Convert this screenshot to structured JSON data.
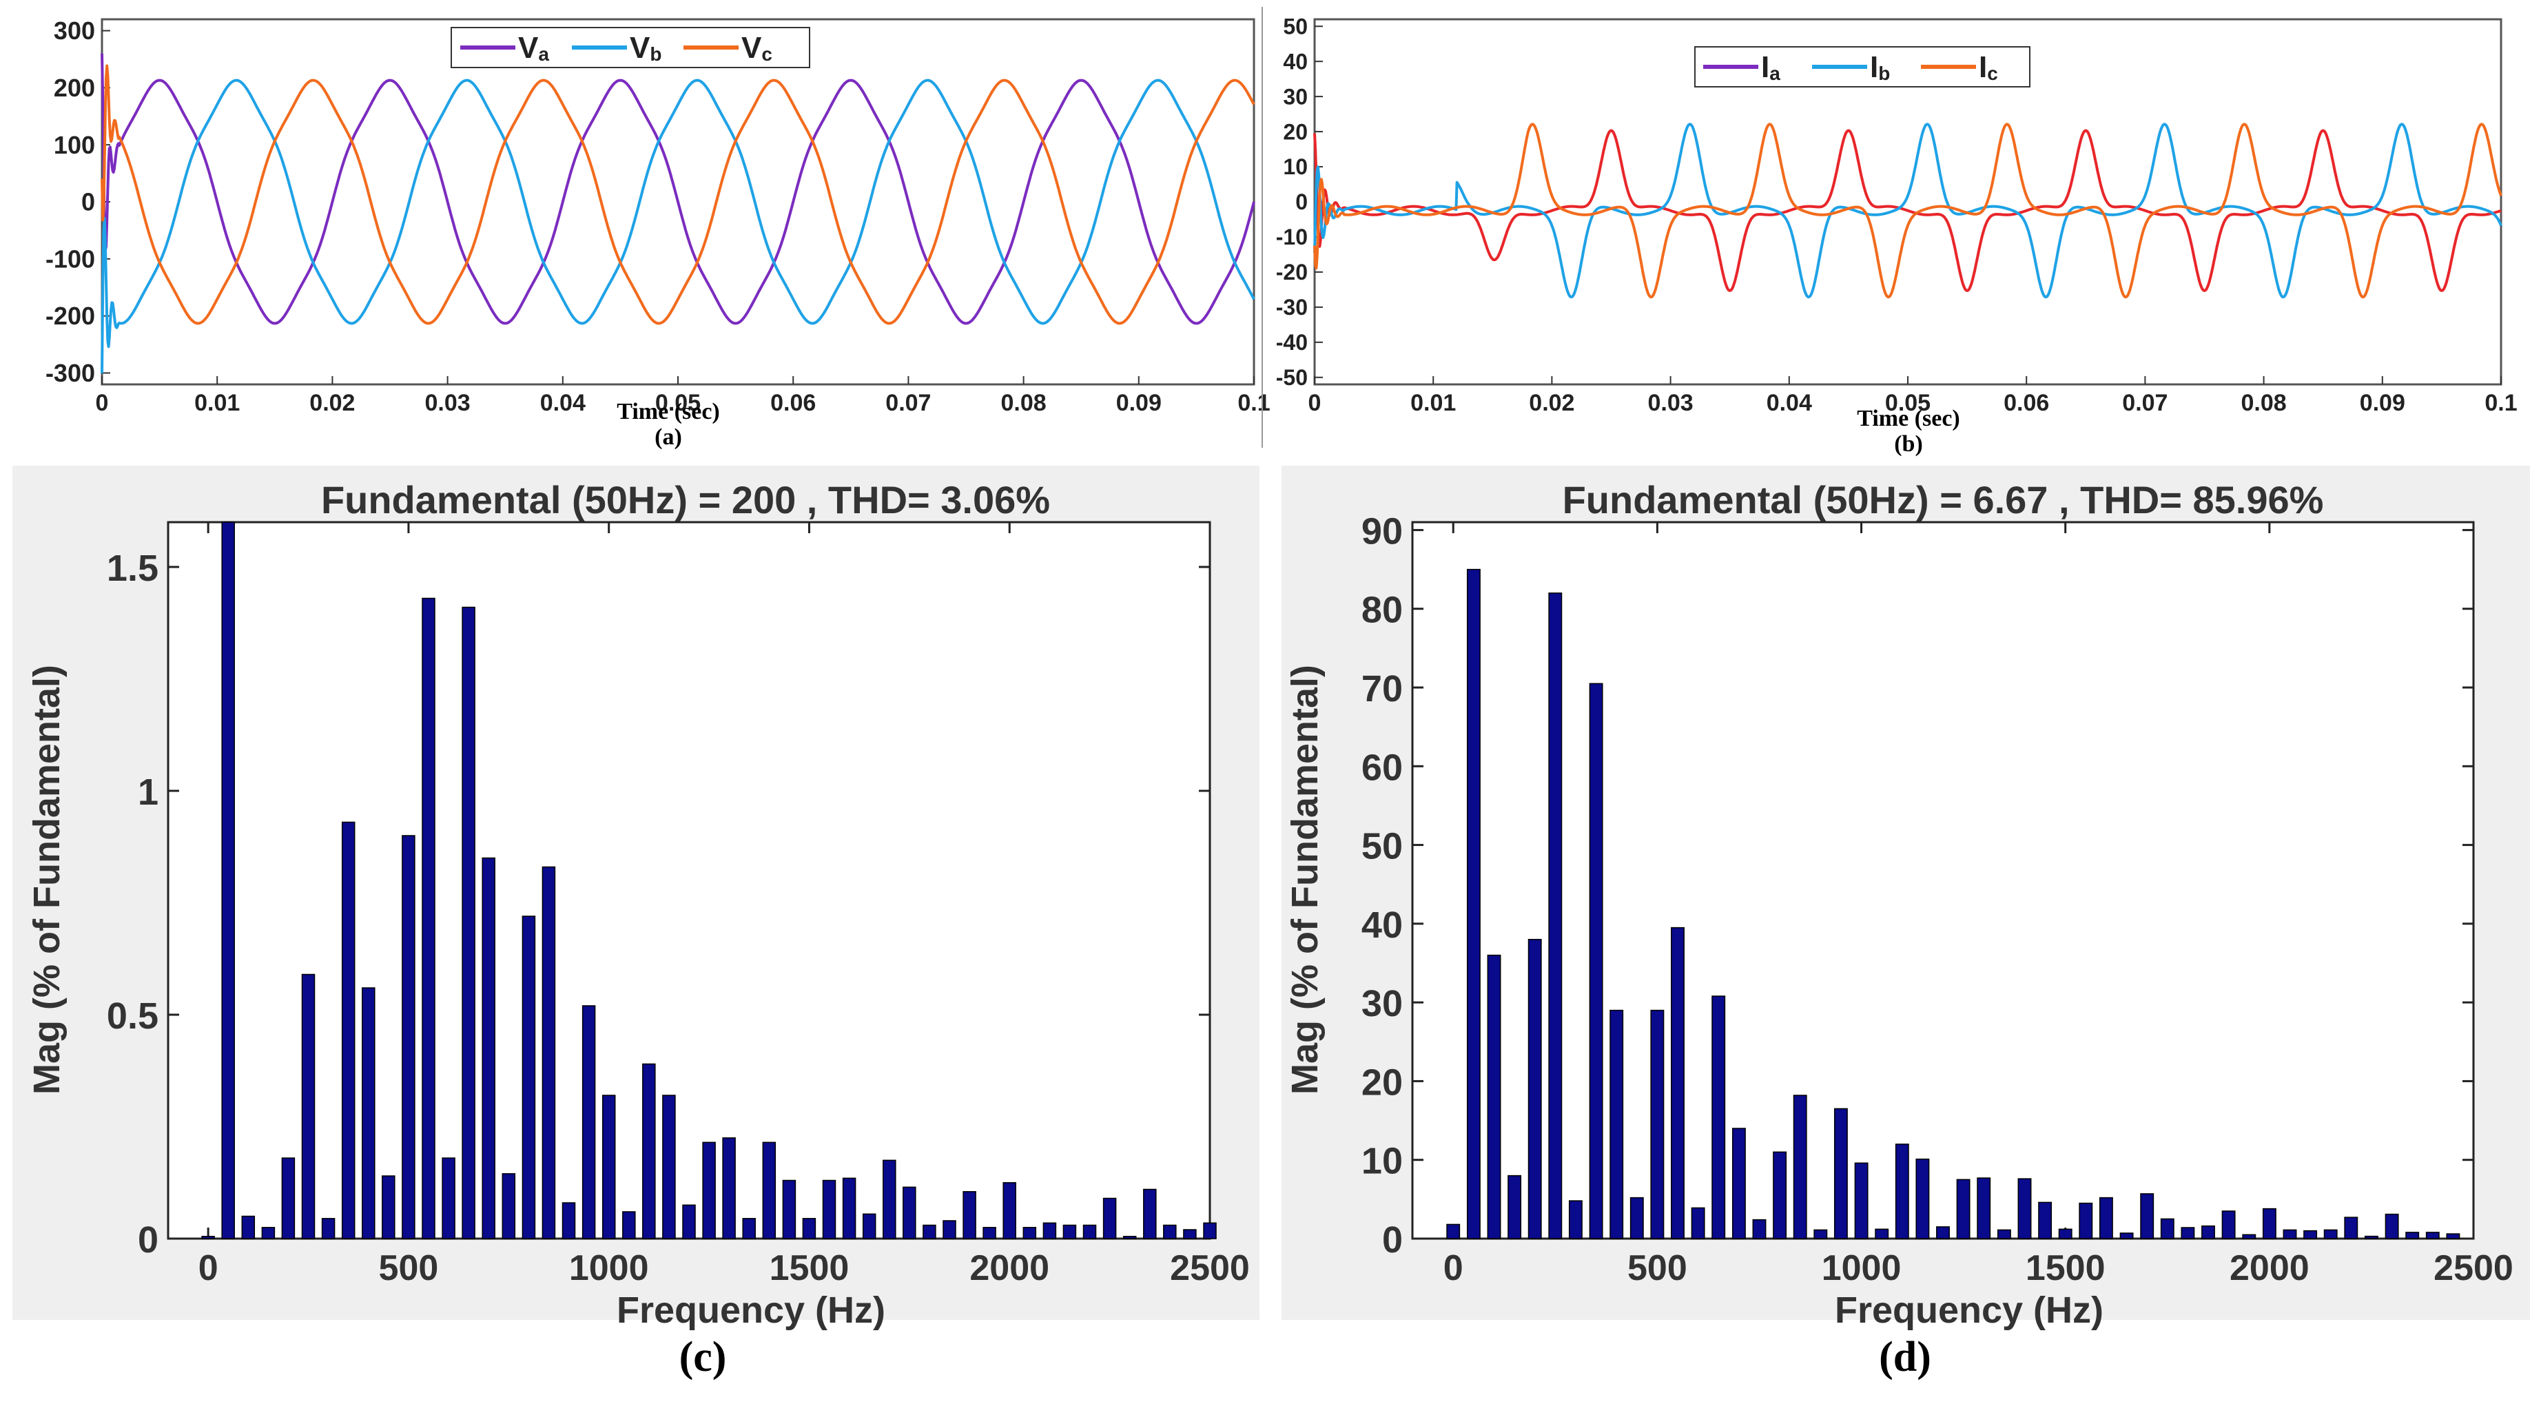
{
  "colors": {
    "phase_a": "#7B2CBF",
    "phase_b": "#1FA2E6",
    "phase_c": "#F26B1D",
    "current_a_trace": "#E8262A",
    "fft_bar": "#0A0A8C",
    "fft_panel_bg": "#EFEFEF"
  },
  "chart_data": [
    {
      "id": "a",
      "type": "line",
      "panel_label": "(a)",
      "xlabel": "Time (sec)",
      "ylabel": "",
      "xlim": [
        0,
        0.1
      ],
      "ylim": [
        -320,
        320
      ],
      "xticks": [
        "0",
        "0.01",
        "0.02",
        "0.03",
        "0.04",
        "0.05",
        "0.06",
        "0.07",
        "0.08",
        "0.09",
        "0.1"
      ],
      "yticks": [
        "300",
        "200",
        "100",
        "0",
        "-100",
        "-200",
        "-300"
      ],
      "legend_position": "top-center",
      "series": [
        {
          "name": "Va",
          "legend_main": "V",
          "legend_sub": "a",
          "amplitude": 205,
          "phase_deg": 0,
          "frequency_hz": 50
        },
        {
          "name": "Vb",
          "legend_main": "V",
          "legend_sub": "b",
          "amplitude": 205,
          "phase_deg": -120,
          "frequency_hz": 50
        },
        {
          "name": "Vc",
          "legend_main": "V",
          "legend_sub": "c",
          "amplitude": 205,
          "phase_deg": 120,
          "frequency_hz": 50
        }
      ]
    },
    {
      "id": "b",
      "type": "line",
      "panel_label": "(b)",
      "xlabel": "Time (sec)",
      "ylabel": "",
      "xlim": [
        0,
        0.1
      ],
      "ylim": [
        -52,
        52
      ],
      "xticks": [
        "0",
        "0.01",
        "0.02",
        "0.03",
        "0.04",
        "0.05",
        "0.06",
        "0.07",
        "0.08",
        "0.09",
        "0.1"
      ],
      "yticks": [
        "50",
        "40",
        "30",
        "20",
        "10",
        "0",
        "-10",
        "-20",
        "-30",
        "-40",
        "-50"
      ],
      "legend_position": "top-center",
      "series": [
        {
          "name": "Ia",
          "legend_main": "I",
          "legend_sub": "a",
          "pulse_peak": 24,
          "phase_deg": 0,
          "frequency_hz": 50
        },
        {
          "name": "Ib",
          "legend_main": "I",
          "legend_sub": "b",
          "pulse_peak": 24,
          "phase_deg": -120,
          "frequency_hz": 50
        },
        {
          "name": "Ic",
          "legend_main": "I",
          "legend_sub": "c",
          "pulse_peak": 24,
          "phase_deg": 120,
          "frequency_hz": 50
        }
      ]
    },
    {
      "id": "c",
      "type": "bar",
      "panel_label": "(c)",
      "title": "Fundamental (50Hz) = 200 , THD= 3.06%",
      "xlabel": "Frequency (Hz)",
      "ylabel": "Mag (% of Fundamental)",
      "xlim": [
        -100,
        2500
      ],
      "ylim": [
        0,
        1.6
      ],
      "xticks": [
        0,
        500,
        1000,
        1500,
        2000,
        2500
      ],
      "yticks": [
        0,
        0.5,
        1,
        1.5
      ],
      "ytick_labels": [
        "0",
        "0.5",
        "1",
        "1.5"
      ],
      "bar_frequencies_hz": [
        0,
        50,
        100,
        150,
        200,
        250,
        300,
        350,
        400,
        450,
        500,
        550,
        600,
        650,
        700,
        750,
        800,
        850,
        900,
        950,
        1000,
        1050,
        1100,
        1150,
        1200,
        1250,
        1300,
        1350,
        1400,
        1450,
        1500,
        1550,
        1600,
        1650,
        1700,
        1750,
        1800,
        1850,
        1900,
        1950,
        2000,
        2050,
        2100,
        2150,
        2200,
        2250,
        2300,
        2350,
        2400,
        2450,
        2500
      ],
      "values": [
        0.005,
        1.6,
        0.05,
        0.025,
        0.18,
        0.59,
        0.045,
        0.93,
        0.56,
        0.14,
        0.9,
        1.43,
        0.18,
        1.41,
        0.85,
        0.145,
        0.72,
        0.83,
        0.08,
        0.52,
        0.32,
        0.06,
        0.39,
        0.32,
        0.075,
        0.215,
        0.225,
        0.045,
        0.215,
        0.13,
        0.045,
        0.13,
        0.135,
        0.055,
        0.175,
        0.115,
        0.03,
        0.04,
        0.105,
        0.025,
        0.125,
        0.025,
        0.035,
        0.03,
        0.03,
        0.09,
        0.005,
        0.11,
        0.03,
        0.02,
        0.035
      ]
    },
    {
      "id": "d",
      "type": "bar",
      "panel_label": "(d)",
      "title": "Fundamental (50Hz) = 6.67 , THD= 85.96%",
      "xlabel": "Frequency (Hz)",
      "ylabel": "Mag (% of Fundamental)",
      "xlim": [
        -100,
        2500
      ],
      "ylim": [
        0,
        91
      ],
      "xticks": [
        0,
        500,
        1000,
        1500,
        2000,
        2500
      ],
      "yticks": [
        0,
        10,
        20,
        30,
        40,
        50,
        60,
        70,
        80,
        90
      ],
      "ytick_labels": [
        "0",
        "10",
        "20",
        "30",
        "40",
        "50",
        "60",
        "70",
        "80",
        "90"
      ],
      "bar_frequencies_hz": [
        0,
        50,
        100,
        150,
        200,
        250,
        300,
        350,
        400,
        450,
        500,
        550,
        600,
        650,
        700,
        750,
        800,
        850,
        900,
        950,
        1000,
        1050,
        1100,
        1150,
        1200,
        1250,
        1300,
        1350,
        1400,
        1450,
        1500,
        1550,
        1600,
        1650,
        1700,
        1750,
        1800,
        1850,
        1900,
        1950,
        2000,
        2050,
        2100,
        2150,
        2200,
        2250,
        2300,
        2350,
        2400,
        2450
      ],
      "values": [
        1.8,
        85,
        36,
        8,
        38,
        82,
        4.8,
        70.5,
        29,
        5.2,
        29,
        39.5,
        3.9,
        30.8,
        14,
        2.4,
        11,
        18.2,
        1.1,
        16.5,
        9.6,
        1.2,
        12,
        10.1,
        1.5,
        7.5,
        7.7,
        1.1,
        7.6,
        4.6,
        1.2,
        4.5,
        5.2,
        0.7,
        5.7,
        2.5,
        1.4,
        1.6,
        3.5,
        0.5,
        3.8,
        1.1,
        1,
        1.1,
        2.7,
        0.3,
        3.1,
        0.8,
        0.8,
        0.6
      ]
    }
  ]
}
